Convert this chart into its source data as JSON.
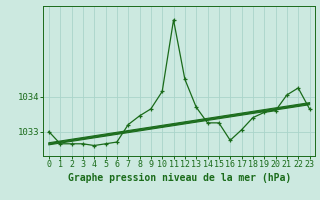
{
  "title": "",
  "xlabel": "Graphe pression niveau de la mer (hPa)",
  "ylabel": "",
  "background_color": "#cce9e0",
  "grid_color": "#aad4ca",
  "line_color": "#1a6b1a",
  "x": [
    0,
    1,
    2,
    3,
    4,
    5,
    6,
    7,
    8,
    9,
    10,
    11,
    12,
    13,
    14,
    15,
    16,
    17,
    18,
    19,
    20,
    21,
    22,
    23
  ],
  "y_main": [
    1033.0,
    1032.65,
    1032.65,
    1032.65,
    1032.6,
    1032.65,
    1032.7,
    1033.2,
    1033.45,
    1033.65,
    1034.15,
    1036.2,
    1034.5,
    1033.7,
    1033.25,
    1033.25,
    1032.75,
    1033.05,
    1033.4,
    1033.55,
    1033.6,
    1034.05,
    1034.25,
    1033.65
  ],
  "y_trend1": [
    1032.62,
    1032.67,
    1032.72,
    1032.77,
    1032.82,
    1032.87,
    1032.92,
    1032.97,
    1033.02,
    1033.07,
    1033.12,
    1033.17,
    1033.22,
    1033.27,
    1033.32,
    1033.37,
    1033.42,
    1033.47,
    1033.52,
    1033.57,
    1033.62,
    1033.67,
    1033.72,
    1033.77
  ],
  "y_trend2": [
    1032.64,
    1032.69,
    1032.74,
    1032.79,
    1032.84,
    1032.89,
    1032.94,
    1032.99,
    1033.04,
    1033.09,
    1033.14,
    1033.19,
    1033.24,
    1033.29,
    1033.34,
    1033.39,
    1033.44,
    1033.49,
    1033.54,
    1033.59,
    1033.64,
    1033.69,
    1033.74,
    1033.79
  ],
  "y_trend3": [
    1032.66,
    1032.71,
    1032.76,
    1032.81,
    1032.86,
    1032.91,
    1032.96,
    1033.01,
    1033.06,
    1033.11,
    1033.16,
    1033.21,
    1033.26,
    1033.31,
    1033.36,
    1033.41,
    1033.46,
    1033.51,
    1033.56,
    1033.61,
    1033.66,
    1033.71,
    1033.76,
    1033.81
  ],
  "y_trend4": [
    1032.68,
    1032.73,
    1032.78,
    1032.83,
    1032.88,
    1032.93,
    1032.98,
    1033.03,
    1033.08,
    1033.13,
    1033.18,
    1033.23,
    1033.28,
    1033.33,
    1033.38,
    1033.43,
    1033.48,
    1033.53,
    1033.58,
    1033.63,
    1033.68,
    1033.73,
    1033.78,
    1033.83
  ],
  "ytick_labels": [
    "1033",
    "1034"
  ],
  "ytick_values": [
    1033.0,
    1034.0
  ],
  "ylim": [
    1032.3,
    1036.6
  ],
  "xlim": [
    -0.5,
    23.5
  ],
  "xlabel_fontsize": 7,
  "tick_fontsize": 6.5
}
